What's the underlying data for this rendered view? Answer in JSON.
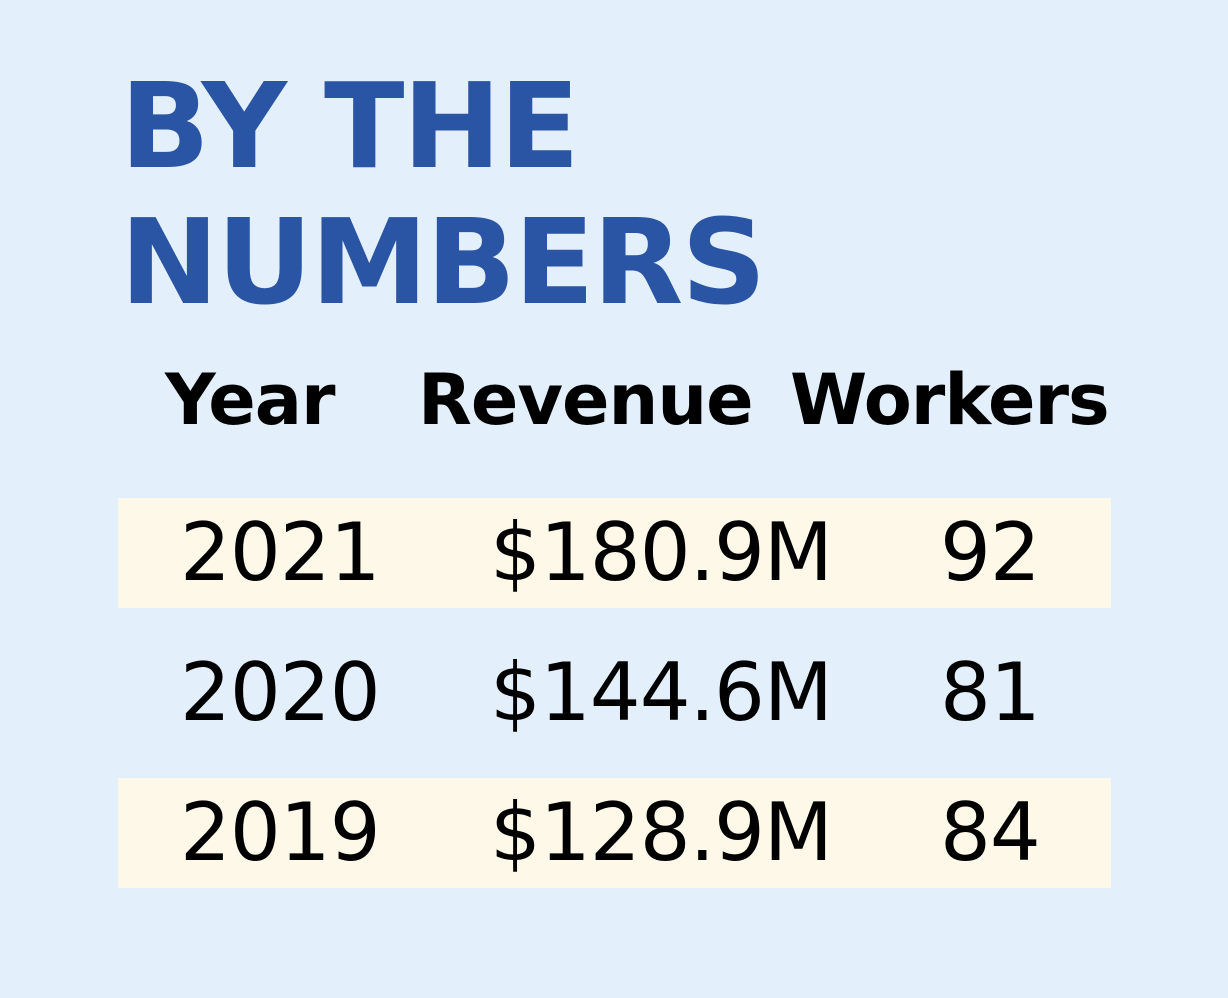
{
  "title_lines": [
    "BY THE",
    "NUMBERS"
  ],
  "colors": {
    "background": "#e3f0fb",
    "title": "#2a54a4",
    "row_highlight": "#fdf8e8",
    "text": "#000000"
  },
  "chart_data": {
    "type": "table",
    "title": "BY THE NUMBERS",
    "columns": [
      "Year",
      "Revenue",
      "Workers"
    ],
    "rows": [
      {
        "year": "2021",
        "revenue": "$180.9M",
        "workers": "92"
      },
      {
        "year": "2020",
        "revenue": "$144.6M",
        "workers": "81"
      },
      {
        "year": "2019",
        "revenue": "$128.9M",
        "workers": "84"
      }
    ],
    "highlighted_rows": [
      0,
      2
    ]
  }
}
